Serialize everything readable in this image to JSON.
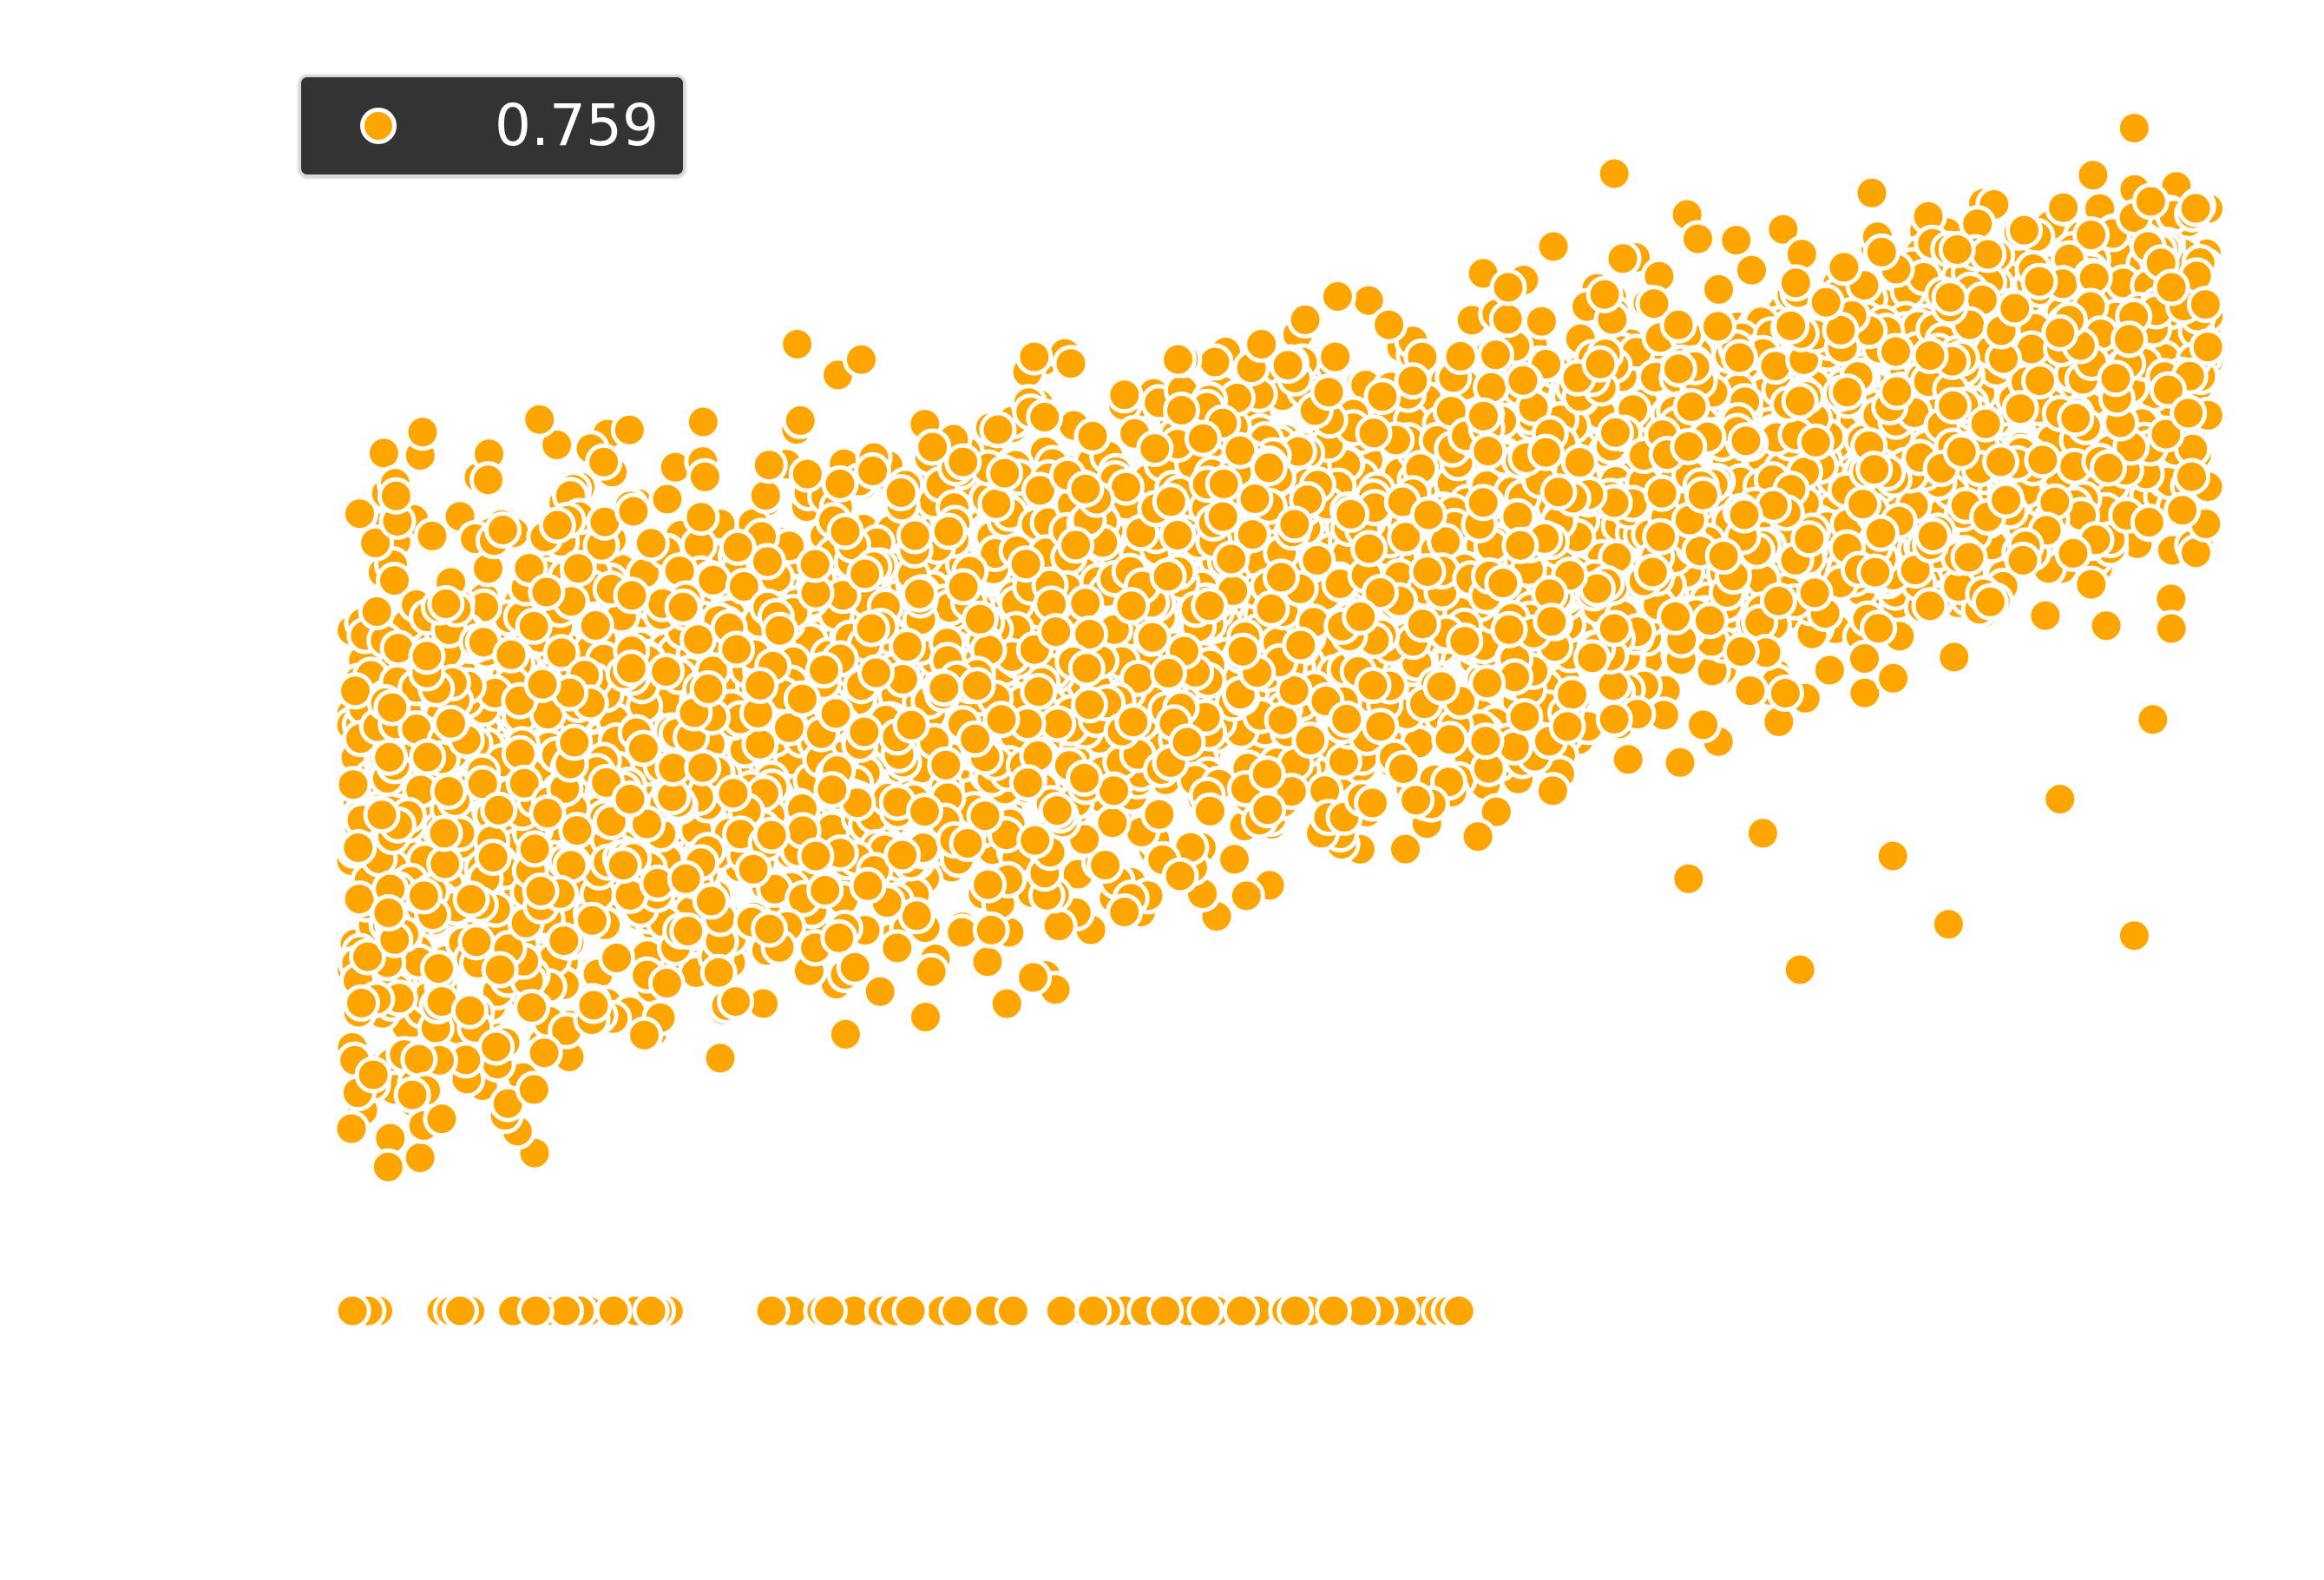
{
  "chart_data": {
    "type": "scatter",
    "title": "",
    "xlabel": "",
    "ylabel": "",
    "xlim": [
      0,
      1
    ],
    "ylim": [
      0,
      1
    ],
    "grid": true,
    "legend_placement": "top-left",
    "series": [
      {
        "name": "0.759",
        "color": "#FFA500",
        "edgecolor": "#ffffff",
        "x": [
          0.02,
          0.05,
          0.08,
          0.12,
          0.15,
          0.18,
          0.22,
          0.25,
          0.28,
          0.32,
          0.35,
          0.38,
          0.42,
          0.45,
          0.48,
          0.52,
          0.55,
          0.58,
          0.62,
          0.65,
          0.68,
          0.72,
          0.75,
          0.78,
          0.82,
          0.85,
          0.88,
          0.92,
          0.95,
          0.98
        ],
        "y": [
          0.35,
          0.42,
          0.3,
          0.5,
          0.45,
          0.38,
          0.55,
          0.4,
          0.6,
          0.48,
          0.52,
          0.44,
          0.62,
          0.5,
          0.58,
          0.66,
          0.55,
          0.7,
          0.64,
          0.72,
          0.6,
          0.76,
          0.7,
          0.8,
          0.74,
          0.84,
          0.78,
          0.86,
          0.82,
          0.9
        ]
      }
    ]
  }
}
